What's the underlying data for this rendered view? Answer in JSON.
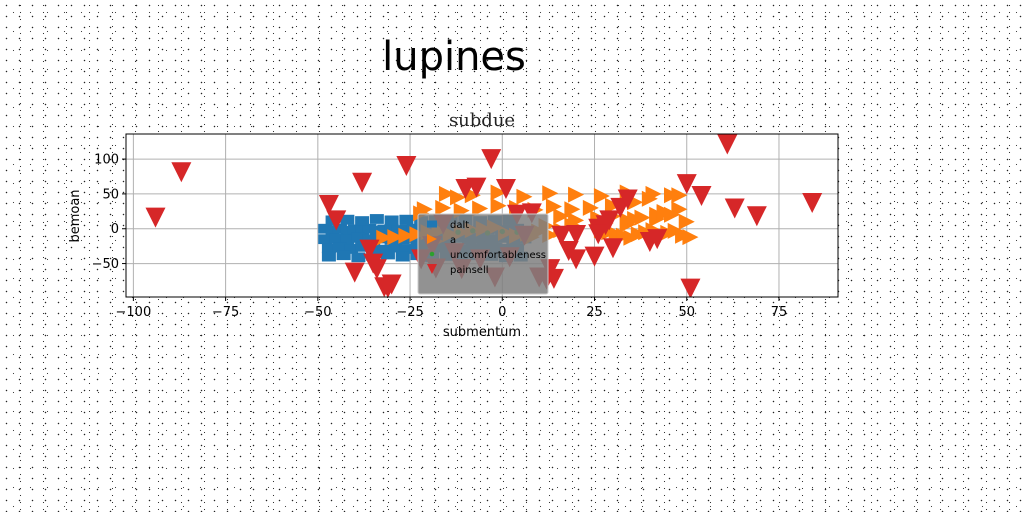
{
  "figure_title": "lupines",
  "chart_data": {
    "type": "scatter",
    "title": "subdue",
    "xlabel": "submentum",
    "ylabel": "bemoan",
    "xlim": [
      -102,
      91
    ],
    "ylim": [
      -98,
      136
    ],
    "xticks": [
      -100,
      -75,
      -50,
      -25,
      0,
      25,
      50,
      75
    ],
    "yticks": [
      -50,
      0,
      50,
      100
    ],
    "grid": true,
    "legend_position": "center",
    "series": [
      {
        "name": "dalt",
        "marker": "square",
        "color": "#1f77b4",
        "x": [
          -48,
          -46,
          -44,
          -42,
          -40,
          -38,
          -36,
          -34,
          -32,
          -30,
          -28,
          -26,
          -24,
          -22,
          -20,
          -18,
          -16,
          -14,
          -12,
          -10,
          -8,
          -6,
          -4,
          -2,
          0,
          2,
          4,
          -48,
          -45,
          -42,
          -39,
          -36,
          -33,
          -30,
          -27,
          -24,
          -21,
          -18,
          -15,
          -12,
          -9,
          -6,
          -3,
          0,
          3,
          6,
          -47,
          -44,
          -41,
          -38,
          -35,
          -32,
          -29,
          -26,
          -23,
          -20,
          -17,
          -14,
          -11,
          -8,
          -5,
          -2,
          1,
          4,
          -47,
          -43,
          -39,
          -35,
          -31,
          -27,
          -23,
          -19,
          -15,
          -11,
          -7,
          -3,
          1,
          5,
          -46,
          -42,
          -38,
          -34,
          -30,
          -26,
          -22,
          -18,
          -14,
          -10,
          -6,
          -2,
          2
        ],
        "y": [
          0,
          -2,
          0,
          -3,
          -1,
          -2,
          0,
          -3,
          -1,
          0,
          -2,
          -1,
          0,
          -2,
          -3,
          -1,
          0,
          -2,
          -1,
          0,
          -3,
          -2,
          -1,
          0,
          -2,
          -1,
          0,
          -15,
          -14,
          -16,
          -13,
          -15,
          -14,
          -16,
          -15,
          -13,
          -16,
          -14,
          -15,
          -13,
          -16,
          -14,
          -15,
          -13,
          -16,
          -14,
          -28,
          -27,
          -29,
          -26,
          -28,
          -30,
          -27,
          -29,
          -26,
          -28,
          -27,
          -29,
          -30,
          -28,
          -26,
          -27,
          -29,
          -28,
          -40,
          -38,
          -41,
          -39,
          -37,
          -40,
          -38,
          -41,
          -39,
          -40,
          -38,
          -39,
          -41,
          -40,
          12,
          13,
          11,
          14,
          12,
          13,
          11,
          12,
          14,
          13,
          11,
          12,
          13
        ]
      },
      {
        "name": "a",
        "marker": "triangle-right",
        "color": "#ff7f0e",
        "x": [
          -32,
          -29,
          -26,
          -23,
          -20,
          -17,
          -14,
          -11,
          -8,
          -5,
          -2,
          1,
          4,
          7,
          10,
          13,
          16,
          19,
          -21,
          -16,
          -11,
          -6,
          -1,
          4,
          9,
          14,
          19,
          24,
          -15,
          -8,
          -1,
          6,
          13,
          20,
          27,
          34,
          41,
          48,
          27,
          29,
          31,
          33,
          35,
          37,
          39,
          41,
          43,
          45,
          47,
          49,
          51,
          26,
          30,
          34,
          38,
          42,
          46,
          50,
          34,
          42,
          44,
          48,
          30,
          36,
          40,
          46,
          12,
          -22,
          8,
          16,
          20,
          28,
          36,
          44,
          -18,
          -12
        ],
        "y": [
          -13,
          -12,
          -10,
          -8,
          -5,
          -3,
          -8,
          -5,
          -2,
          0,
          2,
          -6,
          -10,
          -7,
          -4,
          -9,
          -2,
          5,
          28,
          30,
          26,
          29,
          33,
          30,
          27,
          32,
          28,
          30,
          50,
          48,
          52,
          46,
          51,
          49,
          47,
          52,
          50,
          48,
          -2,
          -5,
          -8,
          -10,
          -13,
          -8,
          -5,
          -2,
          -9,
          -6,
          -3,
          -10,
          -12,
          15,
          18,
          12,
          16,
          14,
          20,
          10,
          6,
          20,
          24,
          28,
          33,
          38,
          43,
          48,
          4,
          22,
          -12,
          18,
          12,
          8,
          14,
          22,
          -18,
          45
        ]
      },
      {
        "name": "uncomfortableness",
        "marker": "dot",
        "color": "#2ca02c",
        "x": [
          -12,
          -8,
          -4,
          0,
          4
        ],
        "y": [
          -5,
          -3,
          -6,
          -4,
          -5
        ]
      },
      {
        "name": "painsell",
        "marker": "triangle-down",
        "color": "#d62728",
        "x": [
          -94,
          -87,
          -47,
          -45,
          -38,
          -35,
          -32,
          -31,
          -26,
          -18,
          -10,
          -7,
          -3,
          1,
          4,
          8,
          12,
          14,
          18,
          20,
          25,
          26,
          28,
          30,
          32,
          34,
          40,
          42,
          50,
          51,
          54,
          63,
          69,
          84,
          61,
          -40,
          -36,
          -34,
          -30,
          -22,
          -19,
          -16,
          -13,
          -11,
          -6,
          -2,
          2,
          6,
          10,
          13,
          16,
          20,
          26,
          29
        ],
        "y": [
          16,
          81,
          34,
          12,
          66,
          -50,
          -84,
          -85,
          90,
          -57,
          57,
          59,
          100,
          57,
          20,
          22,
          -73,
          -72,
          -32,
          -9,
          -40,
          0,
          5,
          -28,
          30,
          42,
          -19,
          -15,
          64,
          -86,
          47,
          29,
          18,
          37,
          121,
          -63,
          -30,
          -58,
          -80,
          -44,
          -25,
          6,
          -35,
          -58,
          -44,
          -70,
          -41,
          -10,
          -70,
          -58,
          -10,
          -44,
          -8,
          12
        ]
      }
    ]
  }
}
